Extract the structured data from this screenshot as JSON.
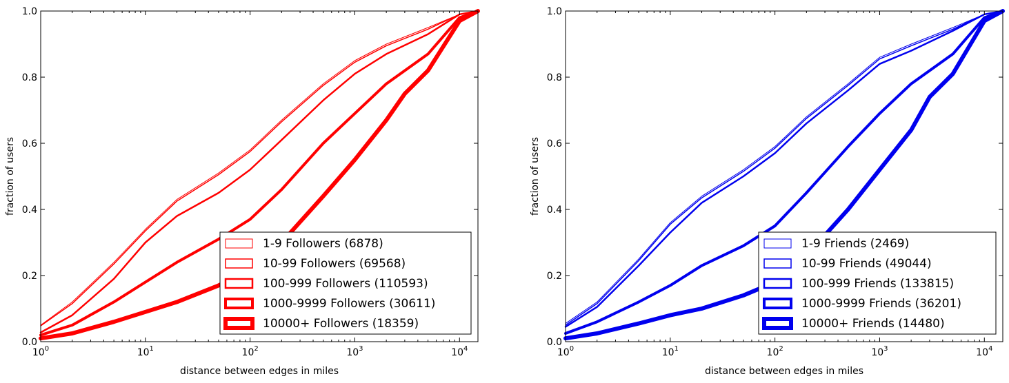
{
  "chart_data": [
    {
      "type": "line",
      "xscale": "log",
      "xlim": [
        1,
        15000
      ],
      "ylim": [
        0,
        1.0
      ],
      "xlabel": "distance between edges in miles",
      "ylabel": "fraction of users",
      "grid": false,
      "legend_position": "lower-right",
      "xticks": [
        {
          "value": 1,
          "base": "10",
          "exp": "0"
        },
        {
          "value": 10,
          "base": "10",
          "exp": "1"
        },
        {
          "value": 100,
          "base": "10",
          "exp": "2"
        },
        {
          "value": 1000,
          "base": "10",
          "exp": "3"
        },
        {
          "value": 10000,
          "base": "10",
          "exp": "4"
        }
      ],
      "yticks": [
        {
          "value": 0,
          "label": "0.0"
        },
        {
          "value": 0.2,
          "label": "0.2"
        },
        {
          "value": 0.4,
          "label": "0.4"
        },
        {
          "value": 0.6,
          "label": "0.6"
        },
        {
          "value": 0.8,
          "label": "0.8"
        },
        {
          "value": 1.0,
          "label": "1.0"
        }
      ],
      "series": [
        {
          "name": "1-9 Followers (6878)",
          "color": "#ff0000",
          "x": [
            1,
            2,
            5,
            10,
            20,
            50,
            100,
            200,
            500,
            1000,
            2000,
            5000,
            10000,
            15000
          ],
          "y": [
            0.05,
            0.12,
            0.24,
            0.34,
            0.43,
            0.51,
            0.58,
            0.67,
            0.78,
            0.85,
            0.9,
            0.95,
            0.99,
            1.0
          ]
        },
        {
          "name": "10-99 Followers (69568)",
          "color": "#ff0000",
          "x": [
            1,
            2,
            5,
            10,
            20,
            50,
            100,
            200,
            500,
            1000,
            2000,
            5000,
            10000,
            15000
          ],
          "y": [
            0.048,
            0.115,
            0.235,
            0.335,
            0.425,
            0.505,
            0.575,
            0.665,
            0.775,
            0.845,
            0.895,
            0.945,
            0.99,
            1.0
          ]
        },
        {
          "name": "100-999 Followers (110593)",
          "color": "#ff0000",
          "x": [
            1,
            2,
            5,
            10,
            20,
            50,
            100,
            200,
            500,
            1000,
            2000,
            5000,
            10000,
            15000
          ],
          "y": [
            0.028,
            0.08,
            0.19,
            0.3,
            0.38,
            0.45,
            0.52,
            0.61,
            0.73,
            0.81,
            0.87,
            0.93,
            0.99,
            1.0
          ]
        },
        {
          "name": "1000-9999 Followers (30611)",
          "color": "#ff0000",
          "x": [
            1,
            2,
            5,
            10,
            20,
            50,
            100,
            200,
            500,
            1000,
            2000,
            5000,
            10000,
            15000
          ],
          "y": [
            0.02,
            0.05,
            0.12,
            0.18,
            0.24,
            0.31,
            0.37,
            0.46,
            0.6,
            0.69,
            0.78,
            0.87,
            0.98,
            1.0
          ]
        },
        {
          "name": "10000+ Followers (18359)",
          "color": "#ff0000",
          "x": [
            1,
            2,
            5,
            10,
            20,
            50,
            100,
            200,
            500,
            1000,
            2000,
            3000,
            5000,
            10000,
            15000
          ],
          "y": [
            0.01,
            0.025,
            0.06,
            0.09,
            0.12,
            0.17,
            0.22,
            0.3,
            0.44,
            0.55,
            0.67,
            0.75,
            0.82,
            0.97,
            1.0
          ]
        }
      ],
      "line_widths": [
        1,
        1.5,
        2.5,
        4,
        6
      ],
      "legend_box_widths": [
        1,
        1.5,
        2.5,
        4,
        6
      ]
    },
    {
      "type": "line",
      "xscale": "log",
      "xlim": [
        1,
        15000
      ],
      "ylim": [
        0,
        1.0
      ],
      "xlabel": "distance between edges in miles",
      "ylabel": "fraction of users",
      "grid": false,
      "legend_position": "lower-right",
      "xticks": [
        {
          "value": 1,
          "base": "10",
          "exp": "0"
        },
        {
          "value": 10,
          "base": "10",
          "exp": "1"
        },
        {
          "value": 100,
          "base": "10",
          "exp": "2"
        },
        {
          "value": 1000,
          "base": "10",
          "exp": "3"
        },
        {
          "value": 10000,
          "base": "10",
          "exp": "4"
        }
      ],
      "yticks": [
        {
          "value": 0,
          "label": "0.0"
        },
        {
          "value": 0.2,
          "label": "0.2"
        },
        {
          "value": 0.4,
          "label": "0.4"
        },
        {
          "value": 0.6,
          "label": "0.6"
        },
        {
          "value": 0.8,
          "label": "0.8"
        },
        {
          "value": 1.0,
          "label": "1.0"
        }
      ],
      "series": [
        {
          "name": "1-9 Friends (2469)",
          "color": "#0000ee",
          "x": [
            1,
            2,
            5,
            10,
            20,
            50,
            100,
            200,
            500,
            1000,
            2000,
            5000,
            10000,
            15000
          ],
          "y": [
            0.055,
            0.12,
            0.25,
            0.36,
            0.44,
            0.52,
            0.59,
            0.68,
            0.78,
            0.86,
            0.9,
            0.95,
            0.99,
            1.0
          ]
        },
        {
          "name": "10-99 Friends (49044)",
          "color": "#0000ee",
          "x": [
            1,
            2,
            5,
            10,
            20,
            50,
            100,
            200,
            500,
            1000,
            2000,
            5000,
            10000,
            15000
          ],
          "y": [
            0.05,
            0.115,
            0.245,
            0.355,
            0.435,
            0.515,
            0.585,
            0.675,
            0.775,
            0.855,
            0.895,
            0.945,
            0.99,
            1.0
          ]
        },
        {
          "name": "100-999 Friends (133815)",
          "color": "#0000ee",
          "x": [
            1,
            2,
            5,
            10,
            20,
            50,
            100,
            200,
            500,
            1000,
            2000,
            5000,
            10000,
            15000
          ],
          "y": [
            0.045,
            0.105,
            0.23,
            0.33,
            0.42,
            0.5,
            0.57,
            0.66,
            0.76,
            0.84,
            0.88,
            0.94,
            0.99,
            1.0
          ]
        },
        {
          "name": "1000-9999 Friends (36201)",
          "color": "#0000ee",
          "x": [
            1,
            2,
            5,
            10,
            20,
            50,
            100,
            200,
            500,
            1000,
            2000,
            5000,
            10000,
            15000
          ],
          "y": [
            0.025,
            0.06,
            0.12,
            0.17,
            0.23,
            0.29,
            0.35,
            0.45,
            0.59,
            0.69,
            0.78,
            0.87,
            0.98,
            1.0
          ]
        },
        {
          "name": "10000+ Friends (14480)",
          "color": "#0000ee",
          "x": [
            1,
            2,
            5,
            10,
            20,
            50,
            100,
            200,
            500,
            1000,
            2000,
            3000,
            5000,
            10000,
            15000
          ],
          "y": [
            0.01,
            0.025,
            0.055,
            0.08,
            0.1,
            0.14,
            0.18,
            0.26,
            0.4,
            0.52,
            0.64,
            0.74,
            0.81,
            0.97,
            1.0
          ]
        }
      ],
      "line_widths": [
        1,
        1.5,
        2.5,
        4,
        6
      ],
      "legend_box_widths": [
        1,
        1.5,
        2.5,
        4,
        6
      ]
    }
  ]
}
